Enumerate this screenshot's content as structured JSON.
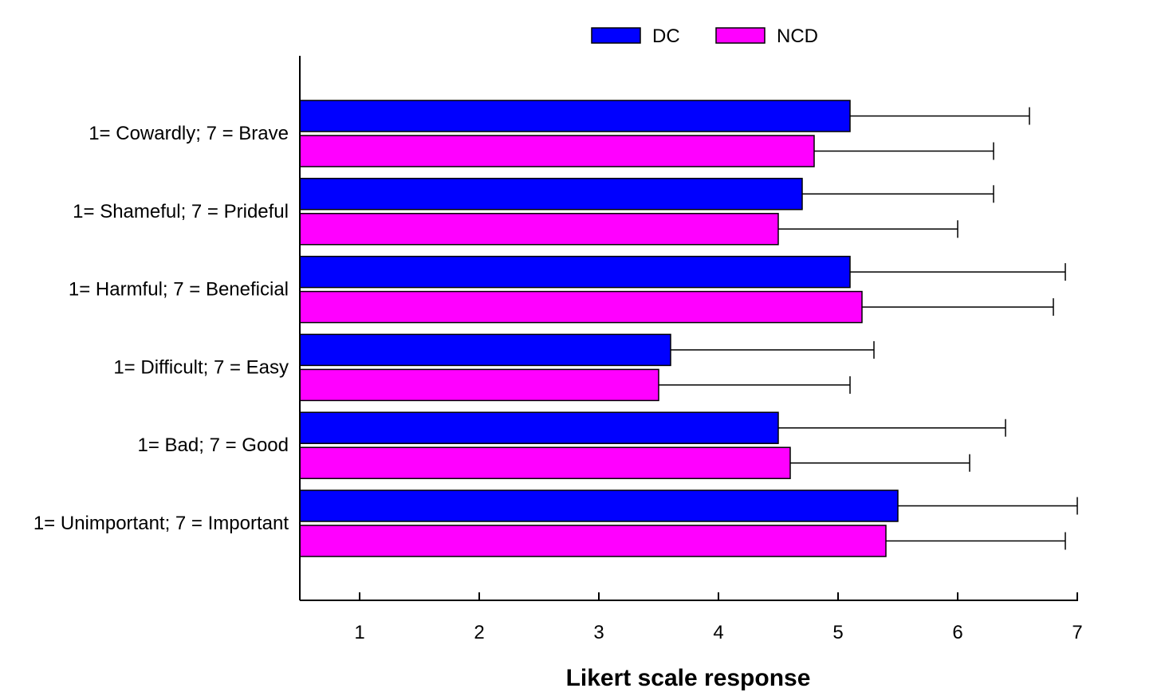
{
  "chart_data": {
    "type": "bar",
    "orientation": "horizontal",
    "xlabel": "Likert scale response",
    "ylabel": "",
    "xlim": [
      0.5,
      7
    ],
    "xticks": [
      "1",
      "2",
      "3",
      "4",
      "5",
      "6",
      "7"
    ],
    "categories": [
      "1= Cowardly; 7 = Brave",
      "1= Shameful; 7 = Prideful",
      "1= Harmful; 7 = Beneficial",
      "1= Difficult; 7 = Easy",
      "1= Bad; 7 = Good",
      "1= Unimportant; 7 = Important"
    ],
    "series": [
      {
        "name": "DC",
        "color": "#0000ff",
        "values": [
          5.1,
          4.7,
          5.1,
          3.6,
          4.5,
          5.5
        ],
        "error": [
          1.5,
          1.6,
          1.8,
          1.7,
          1.9,
          1.5
        ]
      },
      {
        "name": "NCD",
        "color": "#ff00ff",
        "values": [
          4.8,
          4.5,
          5.2,
          3.5,
          4.6,
          5.4
        ],
        "error": [
          1.5,
          1.5,
          1.6,
          1.6,
          1.5,
          1.5
        ]
      }
    ],
    "legend_position": "top-center",
    "grid": false,
    "error_bars": "positive"
  }
}
